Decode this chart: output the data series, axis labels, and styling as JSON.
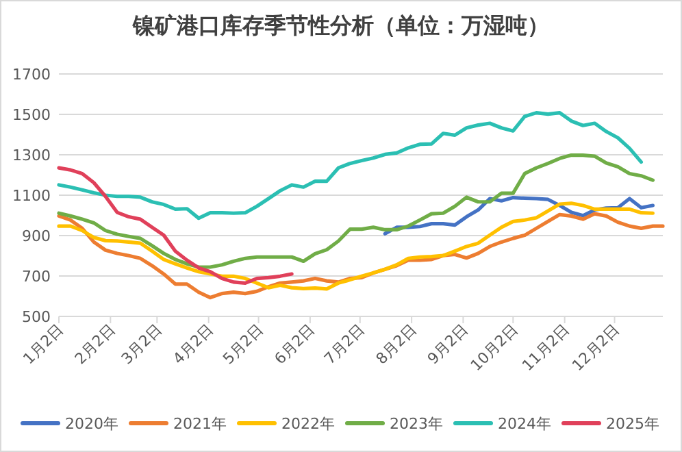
{
  "chart_data": {
    "type": "line",
    "title": "镍矿港口库存季节性分析（单位：万湿吨）",
    "x": [
      "--01-02",
      "--01-09",
      "--01-16",
      "--01-23",
      "--01-30",
      "--02-06",
      "--02-13",
      "--02-20",
      "--02-27",
      "--03-06",
      "--03-13",
      "--03-20",
      "--03-27",
      "--04-03",
      "--04-10",
      "--04-17",
      "--04-24",
      "--05-01",
      "--05-08",
      "--05-15",
      "--05-22",
      "--05-29",
      "--06-05",
      "--06-12",
      "--06-19",
      "--06-26",
      "--07-03",
      "--07-10",
      "--07-17",
      "--07-24",
      "--07-31",
      "--08-07",
      "--08-14",
      "--08-21",
      "--08-28",
      "--09-04",
      "--09-11",
      "--09-18",
      "--09-25",
      "--10-02",
      "--10-09",
      "--10-16",
      "--10-23",
      "--10-30",
      "--11-06",
      "--11-13",
      "--11-20",
      "--11-27",
      "--12-04",
      "--12-11",
      "--12-18",
      "--12-25",
      "--12-31"
    ],
    "xlim": [
      "--01-02",
      "--12-31"
    ],
    "xticks": [
      {
        "value": "--01-02",
        "label": "1月2日"
      },
      {
        "value": "--02-02",
        "label": "2月2日"
      },
      {
        "value": "--03-02",
        "label": "3月2日"
      },
      {
        "value": "--04-02",
        "label": "4月2日"
      },
      {
        "value": "--05-02",
        "label": "5月2日"
      },
      {
        "value": "--06-02",
        "label": "6月2日"
      },
      {
        "value": "--07-02",
        "label": "7月2日"
      },
      {
        "value": "--08-02",
        "label": "8月2日"
      },
      {
        "value": "--09-02",
        "label": "9月2日"
      },
      {
        "value": "--10-02",
        "label": "10月2日"
      },
      {
        "value": "--11-02",
        "label": "11月2日"
      },
      {
        "value": "--12-02",
        "label": "12月2日"
      }
    ],
    "ylim": [
      500,
      1700
    ],
    "yticks": [
      500,
      700,
      900,
      1100,
      1300,
      1500,
      1700
    ],
    "grid": "y",
    "legend": "bottom",
    "series": [
      {
        "name": "2020年",
        "color": "#4472c4",
        "values": [
          null,
          null,
          null,
          null,
          null,
          null,
          null,
          null,
          null,
          null,
          null,
          null,
          null,
          null,
          null,
          null,
          null,
          null,
          null,
          null,
          null,
          null,
          null,
          null,
          null,
          null,
          null,
          null,
          909,
          941,
          941,
          945,
          959,
          959,
          952,
          993,
          1027,
          1083,
          1072,
          1088,
          1085,
          1083,
          1079,
          1049,
          1015,
          999,
          1027,
          1036,
          1038,
          1083,
          1038,
          1049,
          null
        ]
      },
      {
        "name": "2021年",
        "color": "#ed7d31",
        "values": [
          997,
          977,
          936,
          868,
          828,
          812,
          801,
          787,
          751,
          710,
          660,
          660,
          620,
          593,
          613,
          620,
          613,
          624,
          647,
          665,
          670,
          676,
          688,
          676,
          670,
          688,
          692,
          715,
          733,
          751,
          778,
          778,
          782,
          801,
          807,
          789,
          812,
          846,
          868,
          886,
          902,
          936,
          970,
          1004,
          997,
          981,
          1008,
          997,
          966,
          947,
          936,
          947,
          947
        ]
      },
      {
        "name": "2022年",
        "color": "#ffc000",
        "values": [
          947,
          947,
          925,
          891,
          875,
          873,
          868,
          862,
          823,
          782,
          760,
          740,
          721,
          710,
          699,
          699,
          688,
          665,
          642,
          654,
          642,
          638,
          640,
          636,
          665,
          681,
          699,
          715,
          733,
          755,
          787,
          794,
          796,
          801,
          823,
          846,
          862,
          902,
          941,
          970,
          977,
          988,
          1022,
          1056,
          1060,
          1049,
          1031,
          1031,
          1031,
          1031,
          1013,
          1011,
          null
        ]
      },
      {
        "name": "2023年",
        "color": "#70ad47",
        "values": [
          1011,
          997,
          981,
          963,
          925,
          907,
          896,
          886,
          850,
          812,
          782,
          760,
          744,
          744,
          755,
          773,
          787,
          794,
          794,
          794,
          794,
          773,
          810,
          830,
          873,
          932,
          932,
          941,
          929,
          929,
          947,
          977,
          1008,
          1011,
          1045,
          1090,
          1067,
          1067,
          1110,
          1110,
          1207,
          1235,
          1257,
          1282,
          1298,
          1298,
          1293,
          1259,
          1241,
          1207,
          1196,
          1174,
          null
        ]
      },
      {
        "name": "2024年",
        "color": "#2bbfb3",
        "values": [
          1151,
          1140,
          1126,
          1112,
          1100,
          1094,
          1094,
          1090,
          1067,
          1054,
          1031,
          1033,
          986,
          1013,
          1013,
          1011,
          1013,
          1045,
          1083,
          1122,
          1151,
          1140,
          1169,
          1169,
          1235,
          1257,
          1271,
          1284,
          1302,
          1309,
          1334,
          1352,
          1354,
          1406,
          1397,
          1433,
          1447,
          1456,
          1433,
          1418,
          1490,
          1508,
          1501,
          1508,
          1467,
          1445,
          1456,
          1415,
          1384,
          1332,
          1264,
          null,
          null
        ]
      },
      {
        "name": "2025年",
        "color": "#e0405a",
        "values": [
          1235,
          1225,
          1207,
          1162,
          1094,
          1015,
          993,
          981,
          941,
          902,
          823,
          778,
          740,
          721,
          688,
          670,
          665,
          688,
          692,
          699,
          710,
          null,
          null,
          null,
          null,
          null,
          null,
          null,
          null,
          null,
          null,
          null,
          null,
          null,
          null,
          null,
          null,
          null,
          null,
          null,
          null,
          null,
          null,
          null,
          null,
          null,
          null,
          null,
          null,
          null,
          null,
          null,
          null
        ]
      }
    ]
  }
}
